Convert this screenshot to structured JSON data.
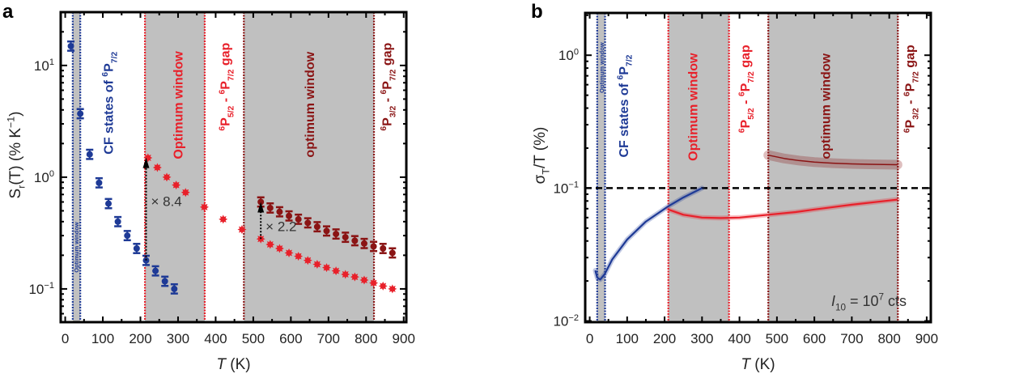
{
  "colors": {
    "blue": "#1e3a96",
    "red": "#e8202a",
    "darkred": "#8a1414",
    "band": "#c0c0c0",
    "black": "#000000"
  },
  "chart_data": [
    {
      "panel": "a",
      "type": "scatter",
      "xlabel": "T (K)",
      "ylabel": "S_{r}(T) (% K^{−1})",
      "xlim": [
        -12,
        907
      ],
      "ylim": [
        0.0504,
        30
      ],
      "yscale": "log",
      "xticks": [
        0,
        100,
        200,
        300,
        400,
        500,
        600,
        700,
        800,
        900
      ],
      "xtick_labels": [
        "0",
        "100",
        "200",
        "300",
        "400",
        "500",
        "600",
        "700",
        "800",
        "900"
      ],
      "yticks": [
        10,
        1,
        0.1
      ],
      "ytick_labels": [
        "10^{1}",
        "10^{0}",
        "10^{−1}"
      ],
      "bands": [
        {
          "from": 20,
          "to": 40,
          "color": "blue",
          "shaded": true
        },
        {
          "from": 212,
          "to": 371,
          "color": "red",
          "shaded": true
        },
        {
          "from": 475,
          "to": 821,
          "color": "darkred",
          "shaded": true
        }
      ],
      "series": [
        {
          "color": "blue",
          "marker": "circle-errorbar",
          "x": [
            15,
            40,
            65,
            90,
            115,
            140,
            165,
            190,
            215,
            240,
            265,
            290
          ],
          "y": [
            14.9,
            3.7,
            1.6,
            0.89,
            0.58,
            0.4,
            0.3,
            0.23,
            0.18,
            0.145,
            0.117,
            0.1
          ]
        },
        {
          "color": "red",
          "marker": "star",
          "x": [
            220,
            245,
            270,
            295,
            320,
            370,
            420,
            470,
            520,
            545,
            570,
            595,
            620,
            645,
            670,
            695,
            720,
            745,
            770,
            795,
            820,
            845,
            870
          ],
          "y": [
            1.49,
            1.22,
            1.0,
            0.85,
            0.73,
            0.54,
            0.42,
            0.34,
            0.28,
            0.25,
            0.23,
            0.21,
            0.196,
            0.18,
            0.166,
            0.155,
            0.145,
            0.135,
            0.128,
            0.12,
            0.113,
            0.106,
            0.1
          ]
        },
        {
          "color": "darkred",
          "marker": "circle-errorbar",
          "x": [
            520,
            545,
            570,
            595,
            620,
            645,
            670,
            695,
            720,
            745,
            770,
            795,
            820,
            845,
            870
          ],
          "y": [
            0.6,
            0.53,
            0.49,
            0.45,
            0.42,
            0.39,
            0.36,
            0.33,
            0.31,
            0.29,
            0.27,
            0.255,
            0.24,
            0.23,
            0.21
          ]
        }
      ],
      "arrows": [
        {
          "x": 215,
          "from": 0.18,
          "to": 1.5,
          "label": "× 8.4",
          "label_y": 0.55
        },
        {
          "x": 520,
          "from": 0.28,
          "to": 0.6,
          "label": "× 2.2",
          "label_y": 0.33
        }
      ],
      "annotations": [
        {
          "text": "Optimum window",
          "color": "blue",
          "x": 30,
          "y": 0.14,
          "size": "small"
        },
        {
          "text": "CF states of ^{6}P_{7/2}",
          "color": "blue",
          "x": 115,
          "y": 1.6
        },
        {
          "text": "Optimum window",
          "color": "red",
          "x": 300,
          "y": 1.45
        },
        {
          "text": "^{6}P_{5/2} - ^{6}P_{7/2} gap",
          "color": "red",
          "x": 425,
          "y": 2.6
        },
        {
          "text": "optimum window",
          "color": "darkred",
          "x": 650,
          "y": 1.5
        },
        {
          "text": "^{6}P_{3/2} - ^{6}P_{7/2} gap",
          "color": "darkred",
          "x": 855,
          "y": 2.6
        }
      ]
    },
    {
      "panel": "b",
      "type": "line",
      "xlabel": "T (K)",
      "ylabel": "σ_{T}/T (%)",
      "xlim": [
        -12,
        911
      ],
      "ylim": [
        0.0098,
        2.08
      ],
      "yscale": "log",
      "xticks": [
        0,
        100,
        200,
        300,
        400,
        500,
        600,
        700,
        800,
        900
      ],
      "xtick_labels": [
        "0",
        "100",
        "200",
        "300",
        "400",
        "500",
        "600",
        "700",
        "800",
        "900"
      ],
      "yticks": [
        1,
        0.1,
        0.01
      ],
      "ytick_labels": [
        "10^{0}",
        "10^{−1}",
        "10^{−2}"
      ],
      "hline": {
        "y": 0.1,
        "style": "dashed",
        "color": "black"
      },
      "bands": [
        {
          "from": 20,
          "to": 41,
          "color": "blue",
          "shaded": true
        },
        {
          "from": 210,
          "to": 372,
          "color": "red",
          "shaded": true
        },
        {
          "from": 477,
          "to": 823,
          "color": "darkred",
          "shaded": true
        }
      ],
      "series": [
        {
          "color": "blue",
          "x": [
            15,
            20,
            28,
            40,
            60,
            100,
            150,
            210,
            250,
            300
          ],
          "y": [
            0.024,
            0.0212,
            0.0205,
            0.0225,
            0.029,
            0.041,
            0.056,
            0.073,
            0.085,
            0.1
          ]
        },
        {
          "color": "red",
          "x": [
            210,
            250,
            300,
            350,
            400,
            477,
            550,
            600,
            700,
            822
          ],
          "y": [
            0.069,
            0.063,
            0.06,
            0.0595,
            0.06,
            0.063,
            0.066,
            0.069,
            0.075,
            0.082
          ]
        },
        {
          "color": "darkred",
          "x": [
            477,
            520,
            560,
            600,
            650,
            700,
            750,
            822
          ],
          "y": [
            0.177,
            0.167,
            0.161,
            0.157,
            0.154,
            0.152,
            0.151,
            0.15
          ]
        }
      ],
      "annotations": [
        {
          "text": "Optimum window",
          "color": "blue",
          "x": 32,
          "y": 0.52,
          "size": "small"
        },
        {
          "text": "CF states of ^{6}P_{7/2}",
          "color": "blue",
          "x": 90,
          "y": 0.17
        },
        {
          "text": "Optimum window",
          "color": "red",
          "x": 275,
          "y": 0.16
        },
        {
          "text": "^{6}P_{5/2} - ^{6}P_{7/2} gap",
          "color": "red",
          "x": 415,
          "y": 0.26
        },
        {
          "text": "optimum window",
          "color": "darkred",
          "x": 630,
          "y": 0.165
        },
        {
          "text": "^{6}P_{3/2} - ^{6}P_{7/2} gap",
          "color": "darkred",
          "x": 855,
          "y": 0.26
        },
        {
          "text": "I_{10} = 10^{7} cts",
          "color": "black",
          "x": 645,
          "y": 0.013,
          "orientation": "horizontal"
        }
      ]
    }
  ]
}
